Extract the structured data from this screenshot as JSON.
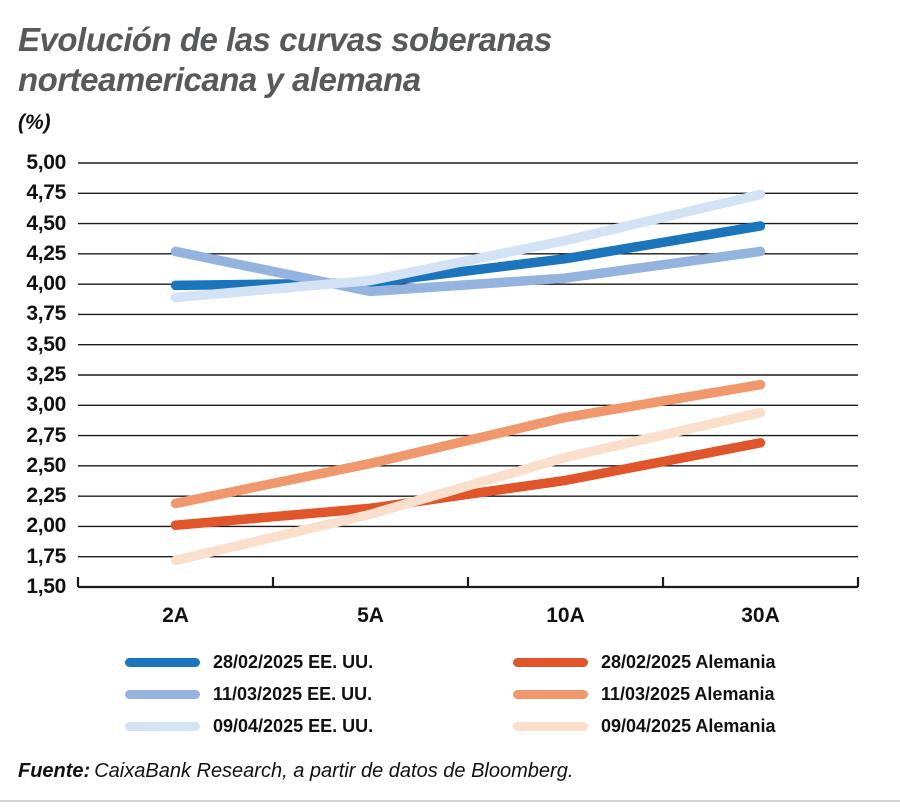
{
  "header": {
    "title_line1": "Evolución de las curvas soberanas",
    "title_line2": "norteamericana y alemana",
    "unit": "(%)"
  },
  "footer": {
    "source_label": "Fuente:",
    "source_text": "CaixaBank Research, a partir de datos de Bloomberg."
  },
  "colors": {
    "title": "#58595b",
    "axis": "#1a1a1a",
    "us_feb": "#1b75bc",
    "us_mar": "#94b3de",
    "us_apr": "#d3e2f4",
    "de_feb": "#e0552a",
    "de_mar": "#f0986c",
    "de_apr": "#f9dfcc"
  },
  "chart_data": {
    "type": "line",
    "title": "Evolución de las curvas soberanas norteamericana y alemana",
    "ylabel": "(%)",
    "categories": [
      "2A",
      "5A",
      "10A",
      "30A"
    ],
    "series": [
      {
        "name": "28/02/2025 EE. UU.",
        "color": "#1b75bc",
        "values": [
          3.99,
          4.01,
          4.21,
          4.48
        ]
      },
      {
        "name": "11/03/2025 EE. UU.",
        "color": "#94b3de",
        "values": [
          4.27,
          3.94,
          4.05,
          4.27
        ]
      },
      {
        "name": "09/04/2025 EE. UU.",
        "color": "#d3e2f4",
        "values": [
          3.89,
          4.03,
          4.36,
          4.74
        ]
      },
      {
        "name": "28/02/2025 Alemania",
        "color": "#e0552a",
        "values": [
          2.01,
          2.15,
          2.38,
          2.69
        ]
      },
      {
        "name": "11/03/2025 Alemania",
        "color": "#f0986c",
        "values": [
          2.19,
          2.52,
          2.9,
          3.17
        ]
      },
      {
        "name": "09/04/2025 Alemania",
        "color": "#f9dfcc",
        "values": [
          1.72,
          2.1,
          2.57,
          2.94
        ]
      }
    ],
    "ylim": [
      1.5,
      5.0
    ],
    "ytick_step": 0.25,
    "ytick_labels": [
      "5,00",
      "4,75",
      "4,50",
      "4,25",
      "4,00",
      "3,75",
      "3,50",
      "3,25",
      "3,00",
      "2,75",
      "2,50",
      "2,25",
      "2,00",
      "1,75",
      "1,50"
    ],
    "grid": "horizontal",
    "legend_position": "bottom"
  }
}
